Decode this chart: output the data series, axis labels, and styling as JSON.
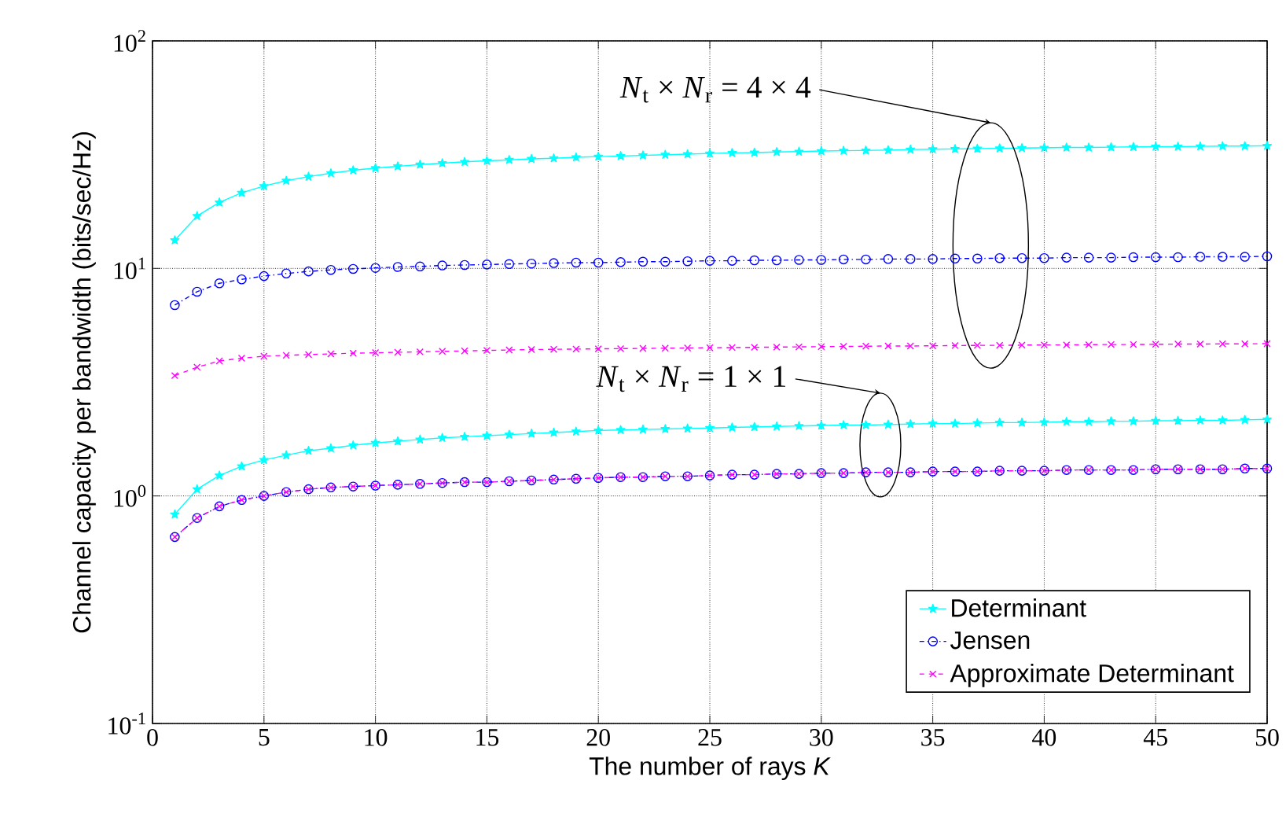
{
  "chart_data": {
    "type": "line",
    "xlabel": "The number of rays *K*",
    "ylabel": "Channel capacity per bandwidth (bits/sec/Hz)",
    "x": [
      1,
      2,
      3,
      4,
      5,
      6,
      7,
      8,
      9,
      10,
      11,
      12,
      13,
      14,
      15,
      16,
      17,
      18,
      19,
      20,
      21,
      22,
      23,
      24,
      25,
      26,
      27,
      28,
      29,
      30,
      31,
      32,
      33,
      34,
      35,
      36,
      37,
      38,
      39,
      40,
      41,
      42,
      43,
      44,
      45,
      46,
      47,
      48,
      49,
      50
    ],
    "series": [
      {
        "name": "Determinant",
        "color": "#00ffff",
        "marker": "star",
        "line_style": "solid",
        "values": [
          13.3,
          17.0,
          19.5,
          21.5,
          23.0,
          24.3,
          25.3,
          26.2,
          27.0,
          27.6,
          28.1,
          28.6,
          29.0,
          29.4,
          29.7,
          30.0,
          30.3,
          30.5,
          30.8,
          31.0,
          31.2,
          31.4,
          31.6,
          31.8,
          32.0,
          32.2,
          32.3,
          32.5,
          32.6,
          32.8,
          32.9,
          33.0,
          33.1,
          33.3,
          33.4,
          33.5,
          33.6,
          33.7,
          33.8,
          33.9,
          34.0,
          34.0,
          34.1,
          34.2,
          34.3,
          34.3,
          34.4,
          34.5,
          34.5,
          34.6
        ]
      },
      {
        "name": "Jensen",
        "color": "#0000ff",
        "marker": "circle",
        "line_style": "dashdot",
        "values": [
          6.9,
          7.9,
          8.6,
          8.95,
          9.25,
          9.5,
          9.7,
          9.85,
          9.95,
          10.05,
          10.15,
          10.2,
          10.3,
          10.35,
          10.4,
          10.45,
          10.5,
          10.55,
          10.6,
          10.6,
          10.65,
          10.7,
          10.7,
          10.75,
          10.8,
          10.8,
          10.85,
          10.85,
          10.9,
          10.9,
          10.95,
          10.95,
          11.0,
          11.0,
          11.0,
          11.05,
          11.05,
          11.1,
          11.1,
          11.1,
          11.15,
          11.15,
          11.15,
          11.2,
          11.2,
          11.2,
          11.25,
          11.25,
          11.25,
          11.3
        ]
      },
      {
        "name": "Approximate Determinant",
        "color": "#ff00ff",
        "marker": "cross",
        "line_style": "dashed",
        "values": [
          3.38,
          3.68,
          3.92,
          4.03,
          4.11,
          4.15,
          4.18,
          4.21,
          4.24,
          4.26,
          4.28,
          4.3,
          4.32,
          4.34,
          4.36,
          4.38,
          4.4,
          4.41,
          4.42,
          4.43,
          4.44,
          4.45,
          4.46,
          4.47,
          4.48,
          4.49,
          4.5,
          4.51,
          4.52,
          4.53,
          4.54,
          4.55,
          4.56,
          4.56,
          4.57,
          4.58,
          4.59,
          4.59,
          4.6,
          4.61,
          4.61,
          4.62,
          4.63,
          4.63,
          4.64,
          4.65,
          4.65,
          4.66,
          4.66,
          4.67
        ]
      },
      {
        "color": "#00ffff",
        "marker": "star",
        "line_style": "solid",
        "values": [
          0.83,
          1.07,
          1.23,
          1.35,
          1.44,
          1.51,
          1.58,
          1.62,
          1.67,
          1.71,
          1.74,
          1.77,
          1.8,
          1.82,
          1.84,
          1.86,
          1.88,
          1.9,
          1.92,
          1.94,
          1.95,
          1.96,
          1.97,
          1.98,
          1.99,
          2.0,
          2.01,
          2.02,
          2.03,
          2.04,
          2.05,
          2.05,
          2.06,
          2.07,
          2.08,
          2.08,
          2.09,
          2.1,
          2.1,
          2.11,
          2.12,
          2.12,
          2.13,
          2.13,
          2.14,
          2.14,
          2.15,
          2.15,
          2.16,
          2.17
        ]
      },
      {
        "color": "#0000ff",
        "marker": "circle",
        "line_style": "dashdot",
        "values": [
          0.66,
          0.8,
          0.9,
          0.96,
          1.0,
          1.04,
          1.07,
          1.09,
          1.1,
          1.11,
          1.12,
          1.13,
          1.14,
          1.15,
          1.15,
          1.16,
          1.17,
          1.18,
          1.19,
          1.2,
          1.21,
          1.21,
          1.22,
          1.22,
          1.23,
          1.24,
          1.24,
          1.25,
          1.25,
          1.26,
          1.26,
          1.27,
          1.27,
          1.27,
          1.28,
          1.28,
          1.28,
          1.29,
          1.29,
          1.29,
          1.3,
          1.3,
          1.3,
          1.3,
          1.31,
          1.31,
          1.31,
          1.31,
          1.32,
          1.32
        ]
      },
      {
        "color": "#ff00ff",
        "marker": "cross",
        "line_style": "dashed",
        "values": [
          0.66,
          0.8,
          0.9,
          0.96,
          1.0,
          1.04,
          1.07,
          1.09,
          1.1,
          1.11,
          1.12,
          1.13,
          1.14,
          1.15,
          1.15,
          1.16,
          1.17,
          1.18,
          1.19,
          1.2,
          1.21,
          1.21,
          1.22,
          1.22,
          1.23,
          1.24,
          1.24,
          1.25,
          1.25,
          1.26,
          1.26,
          1.27,
          1.27,
          1.27,
          1.28,
          1.28,
          1.28,
          1.29,
          1.29,
          1.29,
          1.3,
          1.3,
          1.3,
          1.3,
          1.31,
          1.31,
          1.31,
          1.31,
          1.32,
          1.32
        ]
      }
    ],
    "annotations": [
      "*N*$_{t}$ × *N*$_{r}$ = 4 × 4",
      "*N*$_{t}$ × *N*$_{r}$ = 1 × 1"
    ],
    "xlim": [
      0,
      50
    ],
    "xticks": [
      0,
      5,
      10,
      15,
      20,
      25,
      30,
      35,
      40,
      45,
      50
    ],
    "ylim": [
      0.1,
      100
    ],
    "yticks": [
      {
        "value": 0.1,
        "label": "10$^{-1}$"
      },
      {
        "value": 1,
        "label": "10$^{0}$"
      },
      {
        "value": 10,
        "label": "10$^{1}$"
      },
      {
        "value": 100,
        "label": "10$^{2}$"
      }
    ],
    "log": "y",
    "grid": true,
    "legend": "bottom right"
  }
}
